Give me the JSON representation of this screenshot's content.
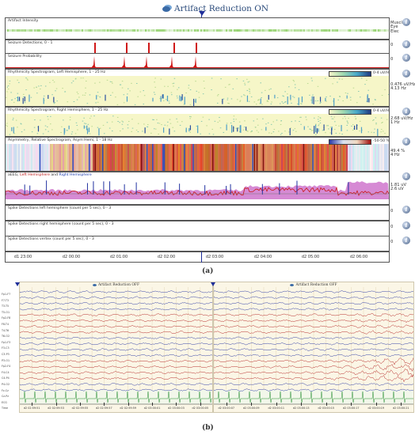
{
  "panel_a": {
    "artifact_reduction_label": "Artifact Reduction ON",
    "tracks": [
      {
        "id": "artifact",
        "title": "Artifact Intensity",
        "side": [
          "Muscle",
          "Eye",
          "Elec"
        ]
      },
      {
        "id": "seizure_det",
        "title": "Seizure Detections, 0 - 1",
        "side": [
          "0"
        ]
      },
      {
        "id": "seizure_prob",
        "title": "Seizure Probability",
        "side": [
          "0"
        ]
      },
      {
        "id": "rhythm_left",
        "title": "Rhythmicity Spectrogram, Left Hemisphere, 1 - 25 Hz",
        "side": [
          "0.476 uV/Hz",
          "4.13 Hz"
        ],
        "colorbar_label": "0-4 uV/Hz"
      },
      {
        "id": "rhythm_right",
        "title": "Rhythmicity Spectrogram, Right Hemisphere, 1 - 25 Hz",
        "side": [
          "2.68 uV/Hz",
          "1 Hz"
        ],
        "colorbar_label": "0-4 uV/Hz"
      },
      {
        "id": "asym",
        "title": "Asymmetry, Relative Spectrogram, Asym Hemi, 1 - 18 Hz",
        "side": [
          "49.4 %",
          "4 Hz"
        ],
        "colorbar_label": "-50-50 %"
      },
      {
        "id": "aeeg",
        "title_parts": [
          "aEEG, ",
          "Left Hemisphere",
          " and ",
          "Right Hemisphere"
        ],
        "side": [
          "1.81 uV",
          "2.6 uV"
        ]
      },
      {
        "id": "spike_left",
        "title": "Spike Detections left hemisphere (count per 5 sec), 0 - 3",
        "side": [
          "0"
        ]
      },
      {
        "id": "spike_right",
        "title": "Spike Detections right hemisphere (count per 5 sec), 0 - 3",
        "side": [
          "0"
        ]
      },
      {
        "id": "spike_vertex",
        "title": "Spike Detections vertex (count per 5 sec), 0 - 3",
        "side": [
          "0"
        ]
      }
    ],
    "info_icon": "i",
    "time_labels": [
      "d1 23:00",
      "d2 00:00",
      "d2 01:00",
      "d2 02:00",
      "d2 03:00",
      "d2 04:00",
      "d2 05:00",
      "d2 06:00"
    ],
    "caption": "(a)"
  },
  "panel_b": {
    "left_header": "Artifact Reduction OFF",
    "right_header": "Artifact Reduction OFF",
    "channels": [
      "Fp1-F7",
      "F7-T3",
      "T3-T5",
      "T5-O1",
      "Fp2-F8",
      "F8-T4",
      "T4-T6",
      "T6-O2",
      "Fp1-F3",
      "F3-C3",
      "C3-P3",
      "P3-O1",
      "Fp2-F4",
      "F4-C4",
      "C4-P4",
      "P4-O2",
      "Fz-Cz",
      "Cz-Pz",
      "ECG",
      "Time"
    ],
    "left_times": [
      "d2 02:59:51",
      "d2 02:59:53",
      "d2 02:59:55",
      "d2 02:59:57",
      "d2 02:59:59",
      "d2 03:00:01",
      "d2 03:00:03",
      "d2 03:00:05"
    ],
    "right_times": [
      "d2 03:00:07",
      "d2 03:00:09",
      "d2 03:00:11",
      "d2 03:00:13",
      "d2 03:00:15",
      "d2 03:00:17",
      "d2 03:00:19",
      "d2 03:00:21"
    ],
    "caption": "(b)"
  },
  "colors": {
    "cursor": "#1f2f9a",
    "seizure_marker": "#d01818",
    "eeg_blue": "#2030a0",
    "eeg_red": "#b01818",
    "ecg_green": "#1f8a2a"
  }
}
